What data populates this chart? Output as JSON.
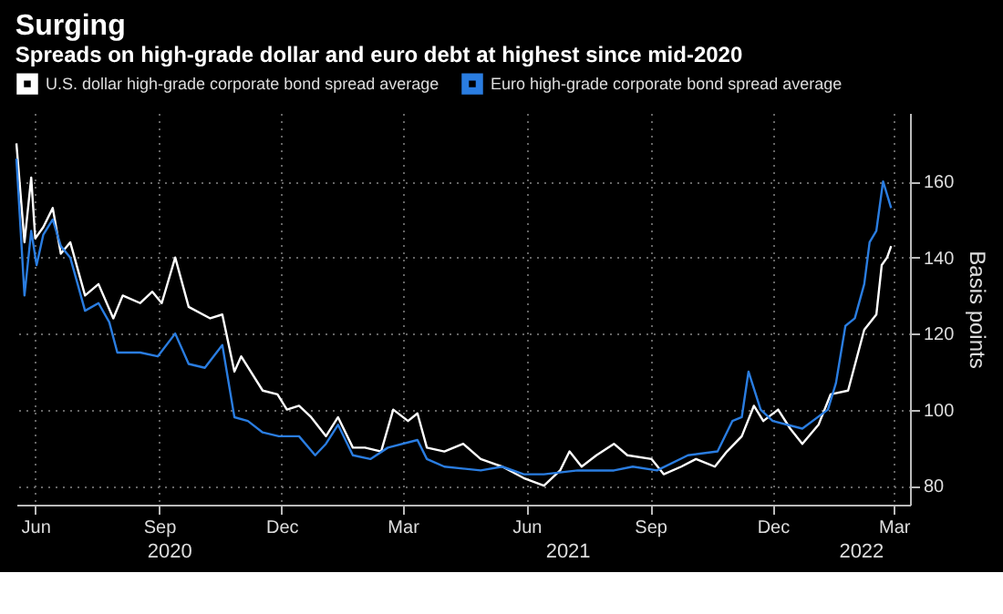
{
  "chart_data": {
    "type": "line",
    "title": "Surging",
    "subtitle": "Spreads on high-grade dollar and euro debt at highest since mid-2020",
    "ylabel": "Basis points",
    "xlim": [
      "2020-05-18",
      "2022-03-13"
    ],
    "ylim": [
      75,
      178
    ],
    "yticks": [
      80,
      100,
      120,
      140,
      160
    ],
    "xticks": [
      {
        "value": "2020-06-01",
        "label": "Jun"
      },
      {
        "value": "2020-09-01",
        "label": "Sep"
      },
      {
        "value": "2020-12-01",
        "label": "Dec"
      },
      {
        "value": "2021-03-01",
        "label": "Mar"
      },
      {
        "value": "2021-06-01",
        "label": "Jun"
      },
      {
        "value": "2021-09-01",
        "label": "Sep"
      },
      {
        "value": "2021-12-01",
        "label": "Dec"
      },
      {
        "value": "2022-03-01",
        "label": "Mar"
      }
    ],
    "annotations": [
      "2020",
      "2021",
      "2022"
    ],
    "grid": true,
    "legend": "top left",
    "series": [
      {
        "name": "U.S. dollar high-grade corporate bond spread average",
        "color": "#ffffff",
        "x": [
          "2020-05-18",
          "2020-05-24",
          "2020-05-29",
          "2020-06-01",
          "2020-06-07",
          "2020-06-14",
          "2020-06-20",
          "2020-06-27",
          "2020-07-08",
          "2020-07-18",
          "2020-07-29",
          "2020-08-05",
          "2020-08-18",
          "2020-08-27",
          "2020-09-03",
          "2020-09-13",
          "2020-09-23",
          "2020-10-09",
          "2020-10-18",
          "2020-10-27",
          "2020-11-01",
          "2020-11-17",
          "2020-11-28",
          "2020-12-05",
          "2020-12-14",
          "2020-12-23",
          "2021-01-03",
          "2021-01-12",
          "2021-01-23",
          "2021-02-01",
          "2021-02-13",
          "2021-02-22",
          "2021-03-05",
          "2021-03-12",
          "2021-03-19",
          "2021-04-01",
          "2021-04-15",
          "2021-04-28",
          "2021-05-14",
          "2021-05-30",
          "2021-06-14",
          "2021-06-26",
          "2021-07-03",
          "2021-07-12",
          "2021-07-23",
          "2021-08-05",
          "2021-08-15",
          "2021-09-02",
          "2021-09-11",
          "2021-09-24",
          "2021-10-05",
          "2021-10-19",
          "2021-10-28",
          "2021-11-08",
          "2021-11-17",
          "2021-11-24",
          "2021-12-05",
          "2021-12-14",
          "2021-12-23",
          "2022-01-04",
          "2022-01-13",
          "2022-01-26",
          "2022-02-07",
          "2022-02-16",
          "2022-02-20",
          "2022-02-24",
          "2022-02-27"
        ],
        "values": [
          170,
          144,
          161,
          145,
          148,
          153,
          141,
          144,
          130,
          133,
          124,
          130,
          128,
          131,
          128,
          140,
          127,
          124,
          125,
          110,
          114,
          105,
          104,
          100,
          101,
          98,
          93,
          98,
          90,
          90,
          89,
          100,
          97,
          99,
          90,
          89,
          91,
          87,
          85,
          82,
          80,
          84,
          89,
          85,
          88,
          91,
          88,
          87,
          83,
          85,
          87,
          85,
          89,
          93,
          101,
          97,
          100,
          95,
          91,
          96,
          104,
          105,
          121,
          125,
          138,
          140,
          143
        ]
      },
      {
        "name": "Euro high-grade corporate bond spread average",
        "color": "#2a7de1",
        "x": [
          "2020-05-18",
          "2020-05-24",
          "2020-05-29",
          "2020-06-02",
          "2020-06-07",
          "2020-06-14",
          "2020-06-20",
          "2020-06-27",
          "2020-07-08",
          "2020-07-18",
          "2020-07-26",
          "2020-08-01",
          "2020-08-18",
          "2020-08-31",
          "2020-09-13",
          "2020-09-23",
          "2020-10-05",
          "2020-10-18",
          "2020-10-27",
          "2020-11-06",
          "2020-11-17",
          "2020-11-29",
          "2020-12-14",
          "2020-12-26",
          "2021-01-03",
          "2021-01-12",
          "2021-01-23",
          "2021-02-05",
          "2021-02-18",
          "2021-03-12",
          "2021-03-19",
          "2021-04-01",
          "2021-04-28",
          "2021-05-14",
          "2021-05-30",
          "2021-06-14",
          "2021-07-09",
          "2021-08-05",
          "2021-08-19",
          "2021-09-06",
          "2021-09-29",
          "2021-10-21",
          "2021-11-01",
          "2021-11-08",
          "2021-11-13",
          "2021-11-22",
          "2021-12-01",
          "2021-12-23",
          "2022-01-11",
          "2022-01-17",
          "2022-01-24",
          "2022-01-31",
          "2022-02-07",
          "2022-02-11",
          "2022-02-16",
          "2022-02-21",
          "2022-02-27"
        ],
        "values": [
          166,
          130,
          147,
          138,
          146,
          150,
          143,
          140,
          126,
          128,
          123,
          115,
          115,
          114,
          120,
          112,
          111,
          117,
          98,
          97,
          94,
          93,
          93,
          88,
          91,
          96,
          88,
          87,
          90,
          92,
          87,
          85,
          84,
          85,
          83,
          83,
          84,
          84,
          85,
          84,
          88,
          89,
          97,
          98,
          110,
          100,
          97,
          95,
          100,
          107,
          122,
          124,
          133,
          144,
          147,
          160,
          153
        ]
      }
    ]
  }
}
